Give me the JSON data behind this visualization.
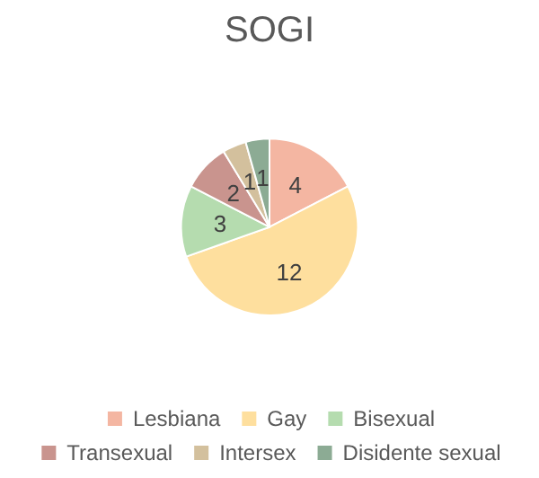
{
  "chart_data": {
    "type": "pie",
    "title": "SOGI",
    "categories": [
      "Lesbiana",
      "Gay",
      "Bisexual",
      "Transexual",
      "Intersex",
      "Disidente sexual"
    ],
    "values": [
      4,
      12,
      3,
      2,
      1,
      1
    ],
    "colors": [
      "#f4b6a2",
      "#fedf9e",
      "#b5dcaf",
      "#c9948e",
      "#d3c09d",
      "#8cab94"
    ],
    "data_labels": true,
    "legend": "bottom"
  }
}
